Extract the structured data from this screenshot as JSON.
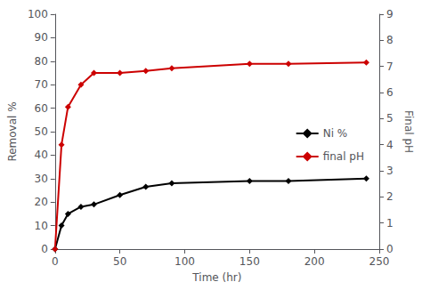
{
  "chart_data": {
    "type": "line",
    "x": [
      0,
      5,
      10,
      20,
      30,
      50,
      70,
      90,
      150,
      180,
      240
    ],
    "series": [
      {
        "name": "Ni %",
        "color": "#000000",
        "marker": "diamond",
        "values": [
          0,
          10,
          15,
          18,
          19,
          23,
          26.5,
          28,
          29,
          29,
          30
        ]
      },
      {
        "name": "final pH",
        "color": "#cc0000",
        "marker": "diamond",
        "axis": "y2",
        "values": [
          0,
          4.0,
          5.45,
          6.3,
          6.75,
          6.75,
          6.83,
          6.93,
          7.1,
          7.1,
          7.15
        ]
      }
    ],
    "xlabel": "Time (hr)",
    "ylabel": "Removal %",
    "y2label": "Final pH",
    "xlim": [
      0,
      250
    ],
    "xticks": [
      0,
      50,
      100,
      150,
      200,
      250
    ],
    "ylim": [
      0,
      100
    ],
    "yticks": [
      0,
      10,
      20,
      30,
      40,
      50,
      60,
      70,
      80,
      90,
      100
    ],
    "y2lim": [
      0,
      9
    ],
    "y2ticks": [
      0,
      1,
      2,
      3,
      4,
      5,
      6,
      7,
      8,
      9
    ],
    "grid": false,
    "legend": "right"
  }
}
